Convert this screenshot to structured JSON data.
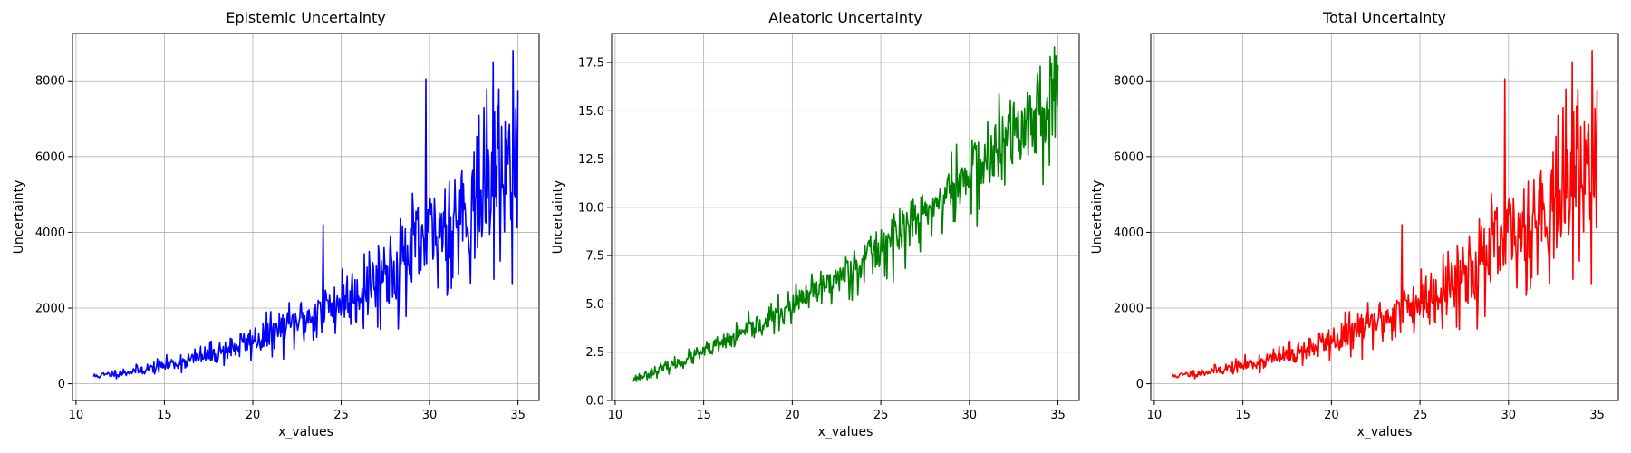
{
  "chart_data": [
    {
      "type": "line",
      "title": "Epistemic Uncertainty",
      "xlabel": "x_values",
      "ylabel": "Uncertainty",
      "xlim": [
        9.8,
        36.2
      ],
      "ylim": [
        -440,
        9250
      ],
      "xticks": [
        10,
        15,
        20,
        25,
        30,
        35
      ],
      "yticks": [
        0,
        2000,
        4000,
        6000,
        8000
      ],
      "ytick_labels": [
        "0",
        "2000",
        "4000",
        "6000",
        "8000"
      ],
      "grid": true,
      "series": [
        {
          "color": "#0000ff",
          "x_start": 11,
          "x_end": 35,
          "points": 600,
          "base": "cubic",
          "y_at_start": 200,
          "y_at_end": 6000,
          "noise": 0.2,
          "seed": 11,
          "spikes": [
            {
              "x": 29.8,
              "y": 8050
            },
            {
              "x": 34.7,
              "y": 8800
            },
            {
              "x": 24.0,
              "y": 4200
            },
            {
              "x": 33.6,
              "y": 8500
            }
          ]
        }
      ]
    },
    {
      "type": "line",
      "title": "Aleatoric Uncertainty",
      "xlabel": "x_values",
      "ylabel": "Uncertainty",
      "xlim": [
        9.8,
        36.2
      ],
      "ylim": [
        0,
        19.0
      ],
      "xticks": [
        10,
        15,
        20,
        25,
        30,
        35
      ],
      "yticks": [
        0.0,
        2.5,
        5.0,
        7.5,
        10.0,
        12.5,
        15.0,
        17.5
      ],
      "ytick_labels": [
        "0.0",
        "2.5",
        "5.0",
        "7.5",
        "10.0",
        "12.5",
        "15.0",
        "17.5"
      ],
      "grid": true,
      "series": [
        {
          "color": "#008000",
          "x_start": 11,
          "x_end": 35,
          "points": 600,
          "base": "quadratic",
          "y_at_start": 1.1,
          "y_at_end": 16.0,
          "noise": 0.09,
          "seed": 23,
          "spikes": [
            {
              "x": 34.8,
              "y": 18.3
            }
          ]
        }
      ]
    },
    {
      "type": "line",
      "title": "Total Uncertainty",
      "xlabel": "x_values",
      "ylabel": "Uncertainty",
      "xlim": [
        9.8,
        36.2
      ],
      "ylim": [
        -440,
        9250
      ],
      "xticks": [
        10,
        15,
        20,
        25,
        30,
        35
      ],
      "yticks": [
        0,
        2000,
        4000,
        6000,
        8000
      ],
      "ytick_labels": [
        "0",
        "2000",
        "4000",
        "6000",
        "8000"
      ],
      "grid": true,
      "series": [
        {
          "color": "#ff0000",
          "x_start": 11,
          "x_end": 35,
          "points": 600,
          "base": "cubic",
          "y_at_start": 200,
          "y_at_end": 6000,
          "noise": 0.2,
          "seed": 11,
          "spikes": [
            {
              "x": 29.8,
              "y": 8050
            },
            {
              "x": 34.7,
              "y": 8800
            },
            {
              "x": 24.0,
              "y": 4200
            },
            {
              "x": 33.6,
              "y": 8500
            }
          ]
        }
      ]
    }
  ]
}
